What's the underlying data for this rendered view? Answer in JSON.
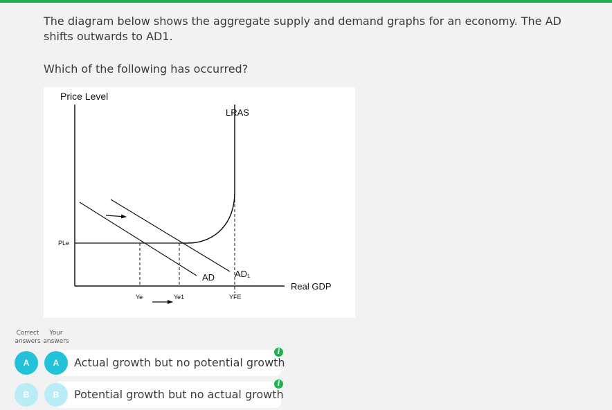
{
  "colors": {
    "accent_bar": "#1fb14b",
    "answer_circle_selected": "#23c2d9",
    "answer_circle_unselected": "#b9ecf4",
    "info_icon": "#1fb14b"
  },
  "question": {
    "text": "The diagram below shows the aggregate supply and demand graphs for an economy. The AD shifts outwards to AD1.",
    "prompt": "Which of the following has occurred?"
  },
  "diagram": {
    "y_axis_label": "Price Level",
    "x_axis_label": "Real GDP",
    "lras_label": "LRAS",
    "price_label": "PLe",
    "ad_label": "AD",
    "ad1_label": "AD₁",
    "ye_label": "Ye",
    "ye1_label": "Ye1",
    "yfe_label": "YFE"
  },
  "answers": {
    "header_correct": [
      "Correct",
      "answers"
    ],
    "header_yours": [
      "Your",
      "answers"
    ],
    "items": [
      {
        "letter": "A",
        "text": "Actual growth but no potential growth",
        "correct": true,
        "selected": true,
        "icon": "info-icon"
      },
      {
        "letter": "B",
        "text": "Potential growth but no actual growth",
        "correct": false,
        "selected": false,
        "icon": "info-icon"
      }
    ]
  }
}
